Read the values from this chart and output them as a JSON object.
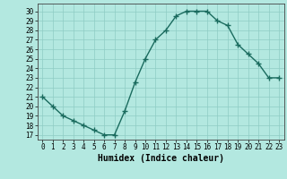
{
  "x": [
    0,
    1,
    2,
    3,
    4,
    5,
    6,
    7,
    8,
    9,
    10,
    11,
    12,
    13,
    14,
    15,
    16,
    17,
    18,
    19,
    20,
    21,
    22,
    23
  ],
  "y": [
    21,
    20,
    19,
    18.5,
    18,
    17.5,
    17,
    17,
    19.5,
    22.5,
    25,
    27,
    28,
    29.5,
    30,
    30,
    30,
    29,
    28.5,
    26.5,
    25.5,
    24.5,
    23,
    23
  ],
  "line_color": "#1a6b5e",
  "marker_color": "#1a6b5e",
  "bg_color": "#b3e8e0",
  "grid_color": "#8eccc4",
  "xlabel": "Humidex (Indice chaleur)",
  "xlabel_fontsize": 7,
  "xlim": [
    -0.5,
    23.5
  ],
  "ylim": [
    16.5,
    30.8
  ],
  "yticks": [
    17,
    18,
    19,
    20,
    21,
    22,
    23,
    24,
    25,
    26,
    27,
    28,
    29,
    30
  ],
  "xticks": [
    0,
    1,
    2,
    3,
    4,
    5,
    6,
    7,
    8,
    9,
    10,
    11,
    12,
    13,
    14,
    15,
    16,
    17,
    18,
    19,
    20,
    21,
    22,
    23
  ],
  "xtick_labels": [
    "0",
    "1",
    "2",
    "3",
    "4",
    "5",
    "6",
    "7",
    "8",
    "9",
    "10",
    "11",
    "12",
    "13",
    "14",
    "15",
    "16",
    "17",
    "18",
    "19",
    "20",
    "21",
    "22",
    "23"
  ],
  "tick_fontsize": 5.5,
  "line_width": 1.0,
  "marker_size": 4
}
